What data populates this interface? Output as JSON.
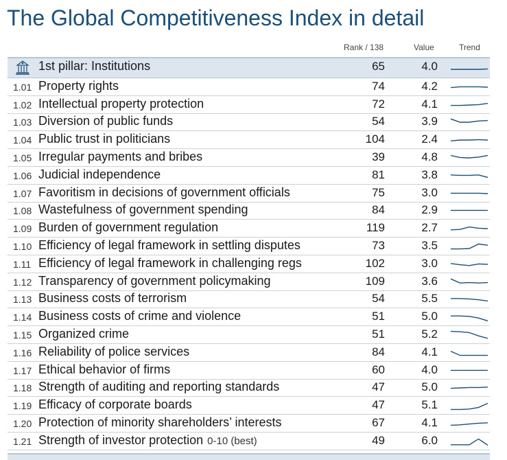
{
  "title": "The Global Competitiveness Index in detail",
  "headers": {
    "rank": "Rank / 138",
    "value": "Value",
    "trend": "Trend"
  },
  "pillar": {
    "label": "1st pillar: Institutions",
    "rank": "65",
    "value": "4.0",
    "icon": "institution-building-icon",
    "trend": [
      0.5,
      0.5,
      0.5,
      0.5,
      0.45
    ]
  },
  "rows": [
    {
      "num": "1.01",
      "label": "Property rights",
      "rank": "74",
      "value": "4.2",
      "trend": [
        0.55,
        0.45,
        0.45,
        0.45,
        0.5
      ]
    },
    {
      "num": "1.02",
      "label": "Intellectual property protection",
      "rank": "72",
      "value": "4.1",
      "trend": [
        0.55,
        0.55,
        0.5,
        0.45,
        0.3
      ]
    },
    {
      "num": "1.03",
      "label": "Diversion of public funds",
      "rank": "54",
      "value": "3.9",
      "trend": [
        0.1,
        0.5,
        0.5,
        0.35,
        0.3
      ]
    },
    {
      "num": "1.04",
      "label": "Public trust in politicians",
      "rank": "104",
      "value": "2.4",
      "trend": [
        0.6,
        0.5,
        0.5,
        0.45,
        0.5
      ]
    },
    {
      "num": "1.05",
      "label": "Irregular payments and bribes",
      "rank": "39",
      "value": "4.8",
      "trend": [
        0.2,
        0.45,
        0.5,
        0.4,
        0.2
      ]
    },
    {
      "num": "1.06",
      "label": "Judicial independence",
      "rank": "81",
      "value": "3.8",
      "trend": [
        0.4,
        0.45,
        0.45,
        0.4,
        0.7
      ]
    },
    {
      "num": "1.07",
      "label": "Favoritism in decisions of government officials",
      "rank": "75",
      "value": "3.0",
      "trend": [
        0.45,
        0.45,
        0.45,
        0.45,
        0.5
      ]
    },
    {
      "num": "1.08",
      "label": "Wastefulness of government spending",
      "rank": "84",
      "value": "2.9",
      "trend": [
        0.45,
        0.45,
        0.45,
        0.45,
        0.45
      ]
    },
    {
      "num": "1.09",
      "label": "Burden of government regulation",
      "rank": "119",
      "value": "2.7",
      "trend": [
        0.65,
        0.6,
        0.3,
        0.45,
        0.5
      ]
    },
    {
      "num": "1.10",
      "label": "Efficiency of legal framework in settling disputes",
      "rank": "73",
      "value": "3.5",
      "trend": [
        0.8,
        0.8,
        0.75,
        0.2,
        0.35
      ]
    },
    {
      "num": "1.11",
      "label": "Efficiency of legal framework in challenging regs",
      "rank": "102",
      "value": "3.0",
      "trend": [
        0.4,
        0.55,
        0.65,
        0.45,
        0.5
      ]
    },
    {
      "num": "1.12",
      "label": "Transparency of government policymaking",
      "rank": "109",
      "value": "3.6",
      "trend": [
        0.1,
        0.6,
        0.55,
        0.6,
        0.55
      ]
    },
    {
      "num": "1.13",
      "label": "Business costs of terrorism",
      "rank": "54",
      "value": "5.5",
      "trend": [
        0.4,
        0.4,
        0.45,
        0.55,
        0.7
      ]
    },
    {
      "num": "1.14",
      "label": "Business costs of crime and violence",
      "rank": "51",
      "value": "5.0",
      "trend": [
        0.35,
        0.35,
        0.4,
        0.6,
        0.95
      ]
    },
    {
      "num": "1.15",
      "label": "Organized crime",
      "rank": "51",
      "value": "5.2",
      "trend": [
        0.05,
        0.1,
        0.2,
        0.6,
        0.9
      ]
    },
    {
      "num": "1.16",
      "label": "Reliability of police services",
      "rank": "84",
      "value": "4.1",
      "trend": [
        0.3,
        0.8,
        0.8,
        0.8,
        0.8
      ]
    },
    {
      "num": "1.17",
      "label": "Ethical behavior of firms",
      "rank": "60",
      "value": "4.0",
      "trend": [
        0.45,
        0.45,
        0.45,
        0.45,
        0.45
      ]
    },
    {
      "num": "1.18",
      "label": "Strength of auditing and reporting standards",
      "rank": "47",
      "value": "5.0",
      "trend": [
        0.55,
        0.5,
        0.45,
        0.45,
        0.4
      ]
    },
    {
      "num": "1.19",
      "label": "Efficacy of corporate boards",
      "rank": "47",
      "value": "5.1",
      "trend": [
        0.95,
        0.95,
        0.9,
        0.7,
        0.2
      ]
    },
    {
      "num": "1.20",
      "label": "Protection of minority shareholders’ interests",
      "rank": "67",
      "value": "4.1",
      "trend": [
        0.7,
        0.65,
        0.55,
        0.45,
        0.4
      ]
    },
    {
      "num": "1.21",
      "label": "Strength of investor protection",
      "unit": "0-10 (best)",
      "rank": "49",
      "value": "6.0",
      "trend": [
        0.9,
        0.9,
        0.9,
        0.2,
        0.95
      ]
    }
  ],
  "style": {
    "title_color": "#1a4f7a",
    "trend_color": "#1a4f7a",
    "pillar_bg": "#dde6ef"
  }
}
